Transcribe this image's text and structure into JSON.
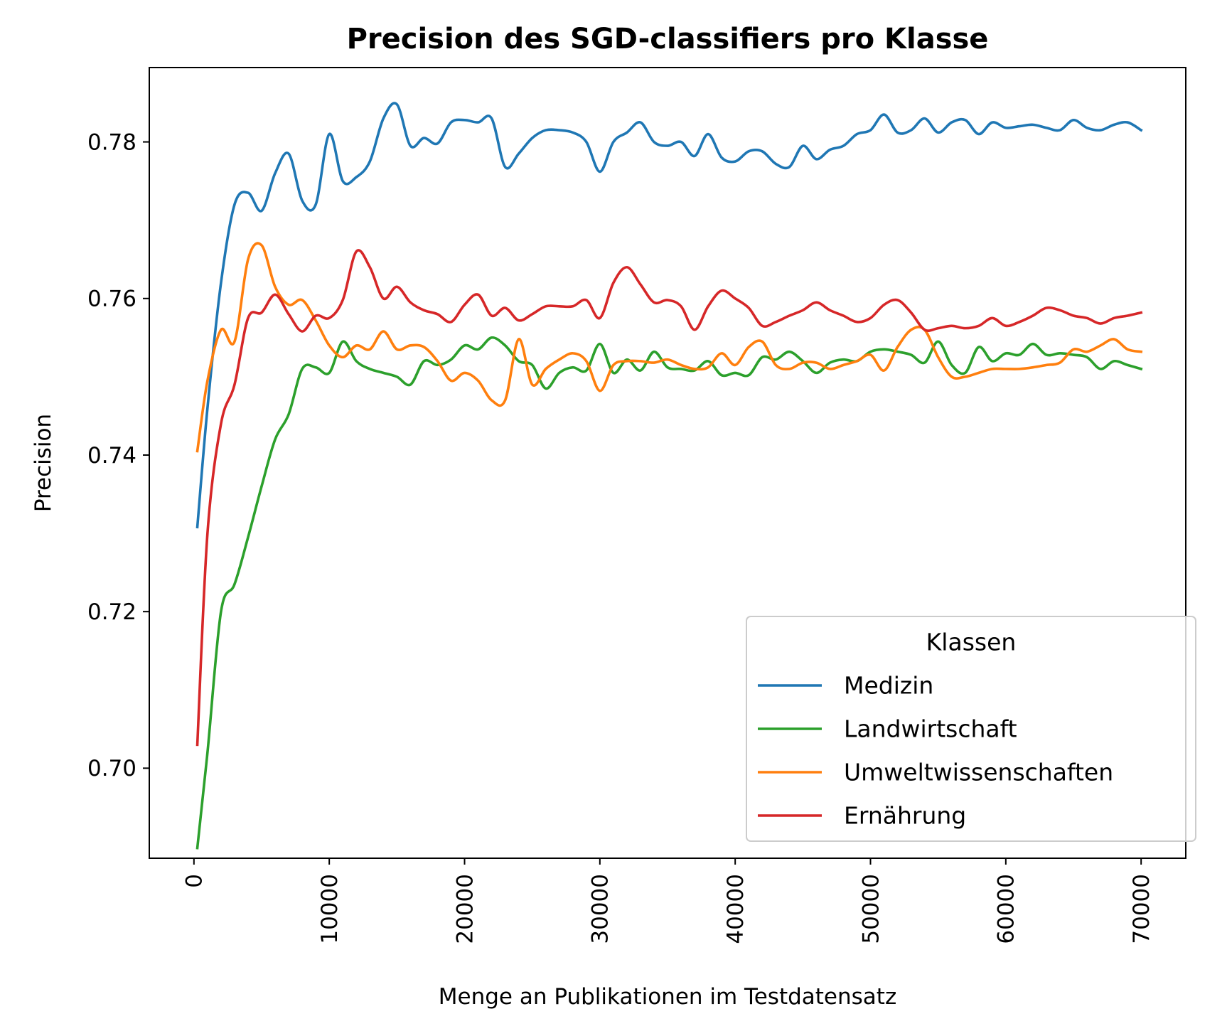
{
  "chart_data": {
    "type": "line",
    "title": "Precision des SGD-classifiers pro Klasse",
    "xlabel": "Menge an Publikationen im Testdatensatz",
    "ylabel": "Precision",
    "xlim": [
      -3300,
      73300
    ],
    "ylim": [
      0.6885,
      0.7895
    ],
    "x_ticks": [
      0,
      10000,
      20000,
      30000,
      40000,
      50000,
      60000,
      70000
    ],
    "x_tick_labels": [
      "0",
      "10000",
      "20000",
      "30000",
      "40000",
      "50000",
      "60000",
      "70000"
    ],
    "y_ticks": [
      0.7,
      0.72,
      0.74,
      0.76,
      0.78
    ],
    "y_tick_labels": [
      "0.70",
      "0.72",
      "0.74",
      "0.76",
      "0.78"
    ],
    "grid": false,
    "legend": {
      "title": "Klassen",
      "position": "lower-right"
    },
    "x": [
      250,
      1000,
      2000,
      3000,
      4000,
      5000,
      6000,
      7000,
      8000,
      9000,
      10000,
      11000,
      12000,
      13000,
      14000,
      15000,
      16000,
      17000,
      18000,
      19000,
      20000,
      21000,
      22000,
      23000,
      24000,
      25000,
      26000,
      27000,
      28000,
      29000,
      30000,
      31000,
      32000,
      33000,
      34000,
      35000,
      36000,
      37000,
      38000,
      39000,
      40000,
      41000,
      42000,
      43000,
      44000,
      45000,
      46000,
      47000,
      48000,
      49000,
      50000,
      51000,
      52000,
      53000,
      54000,
      55000,
      56000,
      57000,
      58000,
      59000,
      60000,
      61000,
      62000,
      63000,
      64000,
      65000,
      66000,
      67000,
      68000,
      69000,
      70000
    ],
    "series": [
      {
        "name": "Medizin",
        "color": "#1f77b4",
        "values": [
          0.7308,
          0.746,
          0.762,
          0.772,
          0.7735,
          0.7712,
          0.776,
          0.7785,
          0.7725,
          0.772,
          0.781,
          0.775,
          0.7755,
          0.7775,
          0.783,
          0.7848,
          0.7795,
          0.7805,
          0.7798,
          0.7825,
          0.7828,
          0.7825,
          0.783,
          0.7768,
          0.7785,
          0.7805,
          0.7815,
          0.7815,
          0.7812,
          0.78,
          0.7762,
          0.78,
          0.7812,
          0.7825,
          0.78,
          0.7795,
          0.78,
          0.7782,
          0.781,
          0.778,
          0.7775,
          0.7788,
          0.7788,
          0.7772,
          0.7768,
          0.7795,
          0.7778,
          0.779,
          0.7795,
          0.781,
          0.7815,
          0.7835,
          0.7812,
          0.7815,
          0.783,
          0.7812,
          0.7825,
          0.7828,
          0.781,
          0.7825,
          0.7818,
          0.782,
          0.7822,
          0.7818,
          0.7815,
          0.7828,
          0.7818,
          0.7815,
          0.7822,
          0.7825,
          0.7815
        ]
      },
      {
        "name": "Landwirtschaft",
        "color": "#2ca02c",
        "values": [
          0.6898,
          0.702,
          0.72,
          0.7235,
          0.7295,
          0.736,
          0.742,
          0.7452,
          0.751,
          0.7512,
          0.7505,
          0.7545,
          0.752,
          0.751,
          0.7505,
          0.75,
          0.749,
          0.752,
          0.7515,
          0.7522,
          0.754,
          0.7535,
          0.755,
          0.754,
          0.752,
          0.7515,
          0.7485,
          0.7505,
          0.7512,
          0.7508,
          0.7542,
          0.7505,
          0.7522,
          0.7508,
          0.7532,
          0.7512,
          0.751,
          0.7508,
          0.752,
          0.7502,
          0.7505,
          0.7502,
          0.7525,
          0.7522,
          0.7532,
          0.752,
          0.7505,
          0.7518,
          0.7522,
          0.752,
          0.7532,
          0.7535,
          0.7532,
          0.7528,
          0.7518,
          0.7545,
          0.7515,
          0.7505,
          0.7538,
          0.752,
          0.753,
          0.7528,
          0.7542,
          0.7528,
          0.753,
          0.7528,
          0.7525,
          0.751,
          0.752,
          0.7515,
          0.751
        ]
      },
      {
        "name": "Umweltwissenschaften",
        "color": "#ff7f0e",
        "values": [
          0.7405,
          0.7495,
          0.756,
          0.7545,
          0.765,
          0.7668,
          0.7615,
          0.7592,
          0.7598,
          0.7572,
          0.754,
          0.7525,
          0.754,
          0.7535,
          0.7558,
          0.7535,
          0.754,
          0.7538,
          0.752,
          0.7495,
          0.7505,
          0.7495,
          0.747,
          0.747,
          0.7548,
          0.749,
          0.751,
          0.7522,
          0.753,
          0.752,
          0.7482,
          0.7515,
          0.752,
          0.752,
          0.7518,
          0.7522,
          0.7515,
          0.751,
          0.7512,
          0.753,
          0.7515,
          0.7538,
          0.7545,
          0.7515,
          0.751,
          0.7518,
          0.7518,
          0.751,
          0.7515,
          0.752,
          0.7528,
          0.7508,
          0.7538,
          0.756,
          0.756,
          0.7525,
          0.75,
          0.75,
          0.7505,
          0.751,
          0.751,
          0.751,
          0.7512,
          0.7515,
          0.7518,
          0.7535,
          0.7532,
          0.754,
          0.7548,
          0.7535,
          0.7532
        ]
      },
      {
        "name": "Ernährung",
        "color": "#d62728",
        "values": [
          0.703,
          0.73,
          0.744,
          0.749,
          0.7575,
          0.7582,
          0.7605,
          0.758,
          0.7558,
          0.7578,
          0.7575,
          0.7598,
          0.766,
          0.764,
          0.76,
          0.7615,
          0.7595,
          0.7585,
          0.758,
          0.757,
          0.7592,
          0.7605,
          0.7578,
          0.7588,
          0.7572,
          0.758,
          0.759,
          0.759,
          0.759,
          0.7598,
          0.7575,
          0.762,
          0.764,
          0.7618,
          0.7595,
          0.7598,
          0.759,
          0.756,
          0.759,
          0.761,
          0.76,
          0.7588,
          0.7565,
          0.757,
          0.7578,
          0.7585,
          0.7595,
          0.7585,
          0.7578,
          0.757,
          0.7575,
          0.7592,
          0.7598,
          0.7582,
          0.756,
          0.7562,
          0.7565,
          0.7562,
          0.7565,
          0.7575,
          0.7565,
          0.757,
          0.7578,
          0.7588,
          0.7585,
          0.7578,
          0.7575,
          0.7568,
          0.7575,
          0.7578,
          0.7582
        ]
      }
    ]
  }
}
